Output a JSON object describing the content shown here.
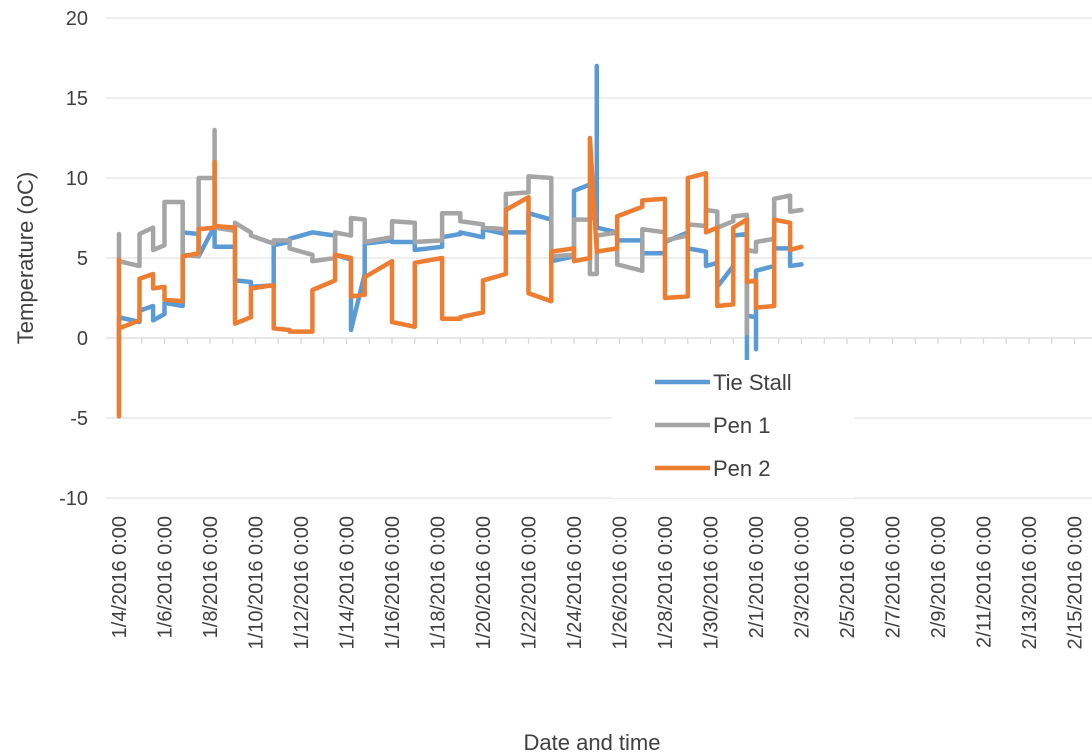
{
  "chart_data": {
    "type": "line",
    "title": "",
    "xlabel": "Date and time",
    "ylabel": "Temperature (oC)",
    "ylim": [
      -10,
      20
    ],
    "yticks": [
      "-10",
      "-5",
      "0",
      "5",
      "10",
      "15",
      "20"
    ],
    "x_tick_labels": [
      "1/4/2016 0:00",
      "1/6/2016 0:00",
      "1/8/2016 0:00",
      "1/10/2016 0:00",
      "1/12/2016 0:00",
      "1/14/2016 0:00",
      "1/16/2016 0:00",
      "1/18/2016 0:00",
      "1/20/2016 0:00",
      "1/22/2016 0:00",
      "1/24/2016 0:00",
      "1/26/2016 0:00",
      "1/28/2016 0:00",
      "1/30/2016 0:00",
      "2/1/2016 0:00",
      "2/3/2016 0:00",
      "2/5/2016 0:00",
      "2/7/2016 0:00",
      "2/9/2016 0:00",
      "2/11/2016 0:00",
      "2/13/2016 0:00",
      "2/15/2016 0:00"
    ],
    "grid": "horizontal",
    "legend_position": "center",
    "x_unit_note": "x values are day offsets from 1/4/2016 0:00",
    "series": [
      {
        "name": "Tie Stall",
        "color": "#5B9BD5",
        "points": [
          [
            0,
            -4.8
          ],
          [
            0,
            1.3
          ],
          [
            0.9,
            1.0
          ],
          [
            0.9,
            1.7
          ],
          [
            1.5,
            2.0
          ],
          [
            1.5,
            1.1
          ],
          [
            2.0,
            1.5
          ],
          [
            2.0,
            2.2
          ],
          [
            2.8,
            2.0
          ],
          [
            2.8,
            6.6
          ],
          [
            3.5,
            6.5
          ],
          [
            3.5,
            5.1
          ],
          [
            4.2,
            7.0
          ],
          [
            4.2,
            5.7
          ],
          [
            5.1,
            5.7
          ],
          [
            5.1,
            3.6
          ],
          [
            5.8,
            3.5
          ],
          [
            5.8,
            3.2
          ],
          [
            6.8,
            3.3
          ],
          [
            6.8,
            5.8
          ],
          [
            7.5,
            6.0
          ],
          [
            7.5,
            6.2
          ],
          [
            8.5,
            6.6
          ],
          [
            8.5,
            6.6
          ],
          [
            9.5,
            6.4
          ],
          [
            9.5,
            5.2
          ],
          [
            10.2,
            4.9
          ],
          [
            10.2,
            0.5
          ],
          [
            10.8,
            4.0
          ],
          [
            10.8,
            5.9
          ],
          [
            12.0,
            6.1
          ],
          [
            12.0,
            6.0
          ],
          [
            13.0,
            6.0
          ],
          [
            13.0,
            5.5
          ],
          [
            14.2,
            5.7
          ],
          [
            14.2,
            6.3
          ],
          [
            15.0,
            6.5
          ],
          [
            15.0,
            6.6
          ],
          [
            16.0,
            6.3
          ],
          [
            16.0,
            6.8
          ],
          [
            17.0,
            6.5
          ],
          [
            17.0,
            6.6
          ],
          [
            18.0,
            6.6
          ],
          [
            18.0,
            7.8
          ],
          [
            19.0,
            7.4
          ],
          [
            19.0,
            4.8
          ],
          [
            20.0,
            5.1
          ],
          [
            20.0,
            9.2
          ],
          [
            20.7,
            9.6
          ],
          [
            20.7,
            7.5
          ],
          [
            21.0,
            7.5
          ],
          [
            21.0,
            17.0
          ],
          [
            21.0,
            6.9
          ],
          [
            21.9,
            6.6
          ],
          [
            21.9,
            6.1
          ],
          [
            23.0,
            6.1
          ],
          [
            23.0,
            5.3
          ],
          [
            24.0,
            5.3
          ],
          [
            24.0,
            6.0
          ],
          [
            25.0,
            6.6
          ],
          [
            25.0,
            5.6
          ],
          [
            25.8,
            5.4
          ],
          [
            25.8,
            4.5
          ],
          [
            26.3,
            4.7
          ],
          [
            26.3,
            3.2
          ],
          [
            27.0,
            4.5
          ],
          [
            27.0,
            6.4
          ],
          [
            27.6,
            6.5
          ],
          [
            27.6,
            -3.7
          ],
          [
            27.6,
            1.4
          ],
          [
            28.0,
            1.3
          ],
          [
            28.0,
            -0.7
          ],
          [
            28.0,
            4.2
          ],
          [
            28.8,
            4.5
          ],
          [
            28.8,
            5.6
          ],
          [
            29.5,
            5.6
          ],
          [
            29.5,
            4.5
          ],
          [
            30.0,
            4.6
          ]
        ]
      },
      {
        "name": "Pen 1",
        "color": "#A5A5A5",
        "points": [
          [
            0,
            6.5
          ],
          [
            0,
            4.8
          ],
          [
            0.9,
            4.5
          ],
          [
            0.9,
            6.5
          ],
          [
            1.5,
            6.9
          ],
          [
            1.5,
            5.5
          ],
          [
            2.0,
            5.8
          ],
          [
            2.0,
            8.5
          ],
          [
            2.8,
            8.5
          ],
          [
            2.8,
            5.2
          ],
          [
            3.5,
            5.1
          ],
          [
            3.5,
            10.0
          ],
          [
            4.2,
            10.0
          ],
          [
            4.2,
            13.0
          ],
          [
            4.2,
            6.9
          ],
          [
            5.1,
            6.7
          ],
          [
            5.1,
            7.2
          ],
          [
            5.8,
            6.6
          ],
          [
            5.8,
            6.4
          ],
          [
            6.8,
            5.9
          ],
          [
            6.8,
            6.1
          ],
          [
            7.5,
            6.1
          ],
          [
            7.5,
            5.6
          ],
          [
            8.5,
            5.2
          ],
          [
            8.5,
            4.8
          ],
          [
            9.5,
            5.0
          ],
          [
            9.5,
            6.6
          ],
          [
            10.2,
            6.4
          ],
          [
            10.2,
            7.5
          ],
          [
            10.8,
            7.4
          ],
          [
            10.8,
            6.0
          ],
          [
            12.0,
            6.3
          ],
          [
            12.0,
            7.3
          ],
          [
            13.0,
            7.2
          ],
          [
            13.0,
            6.0
          ],
          [
            14.2,
            6.1
          ],
          [
            14.2,
            7.8
          ],
          [
            15.0,
            7.8
          ],
          [
            15.0,
            7.3
          ],
          [
            16.0,
            7.1
          ],
          [
            16.0,
            6.9
          ],
          [
            17.0,
            6.8
          ],
          [
            17.0,
            9.0
          ],
          [
            18.0,
            9.1
          ],
          [
            18.0,
            10.1
          ],
          [
            19.0,
            10.0
          ],
          [
            19.0,
            5.1
          ],
          [
            20.0,
            5.2
          ],
          [
            20.0,
            7.4
          ],
          [
            20.7,
            7.4
          ],
          [
            20.7,
            4.0
          ],
          [
            21.0,
            4.0
          ],
          [
            21.0,
            6.4
          ],
          [
            21.9,
            6.6
          ],
          [
            21.9,
            4.6
          ],
          [
            23.0,
            4.2
          ],
          [
            23.0,
            6.8
          ],
          [
            24.0,
            6.6
          ],
          [
            24.0,
            6.1
          ],
          [
            25.0,
            6.4
          ],
          [
            25.0,
            7.1
          ],
          [
            25.8,
            7.0
          ],
          [
            25.8,
            8.0
          ],
          [
            26.3,
            7.9
          ],
          [
            26.3,
            6.9
          ],
          [
            27.0,
            7.3
          ],
          [
            27.0,
            7.6
          ],
          [
            27.6,
            7.7
          ],
          [
            27.6,
            0.3
          ],
          [
            27.6,
            5.5
          ],
          [
            28.0,
            5.4
          ],
          [
            28.0,
            6.0
          ],
          [
            28.8,
            6.2
          ],
          [
            28.8,
            8.7
          ],
          [
            29.5,
            8.9
          ],
          [
            29.5,
            7.9
          ],
          [
            30.0,
            8.0
          ]
        ]
      },
      {
        "name": "Pen 2",
        "color": "#ED7D31",
        "points": [
          [
            0,
            -4.9
          ],
          [
            0,
            4.9
          ],
          [
            0,
            0.6
          ],
          [
            0.9,
            1.1
          ],
          [
            0.9,
            3.7
          ],
          [
            1.5,
            4.0
          ],
          [
            1.5,
            3.1
          ],
          [
            2.0,
            3.2
          ],
          [
            2.0,
            2.4
          ],
          [
            2.8,
            2.3
          ],
          [
            2.8,
            5.1
          ],
          [
            3.5,
            5.3
          ],
          [
            3.5,
            6.8
          ],
          [
            4.2,
            6.9
          ],
          [
            4.2,
            11.0
          ],
          [
            4.2,
            7.0
          ],
          [
            5.1,
            6.9
          ],
          [
            5.1,
            0.9
          ],
          [
            5.8,
            1.3
          ],
          [
            5.8,
            3.1
          ],
          [
            6.8,
            3.3
          ],
          [
            6.8,
            0.6
          ],
          [
            7.5,
            0.5
          ],
          [
            7.5,
            0.4
          ],
          [
            8.5,
            0.4
          ],
          [
            8.5,
            3.0
          ],
          [
            9.5,
            3.6
          ],
          [
            9.5,
            5.2
          ],
          [
            10.2,
            5.0
          ],
          [
            10.2,
            2.6
          ],
          [
            10.8,
            2.7
          ],
          [
            10.8,
            3.8
          ],
          [
            12.0,
            4.8
          ],
          [
            12.0,
            1.0
          ],
          [
            13.0,
            0.7
          ],
          [
            13.0,
            4.7
          ],
          [
            14.2,
            5.0
          ],
          [
            14.2,
            1.2
          ],
          [
            15.0,
            1.2
          ],
          [
            15.0,
            1.3
          ],
          [
            16.0,
            1.6
          ],
          [
            16.0,
            3.6
          ],
          [
            17.0,
            4.0
          ],
          [
            17.0,
            8.0
          ],
          [
            18.0,
            8.8
          ],
          [
            18.0,
            2.8
          ],
          [
            19.0,
            2.3
          ],
          [
            19.0,
            5.4
          ],
          [
            20.0,
            5.6
          ],
          [
            20.0,
            4.8
          ],
          [
            20.7,
            5.0
          ],
          [
            20.7,
            12.5
          ],
          [
            21.0,
            5.4
          ],
          [
            21.9,
            5.6
          ],
          [
            21.9,
            7.6
          ],
          [
            23.0,
            8.2
          ],
          [
            23.0,
            8.6
          ],
          [
            24.0,
            8.7
          ],
          [
            24.0,
            2.5
          ],
          [
            25.0,
            2.6
          ],
          [
            25.0,
            10.0
          ],
          [
            25.8,
            10.3
          ],
          [
            25.8,
            6.6
          ],
          [
            26.3,
            6.9
          ],
          [
            26.3,
            2.0
          ],
          [
            27.0,
            2.1
          ],
          [
            27.0,
            6.9
          ],
          [
            27.6,
            7.4
          ],
          [
            27.6,
            3.5
          ],
          [
            28.0,
            3.6
          ],
          [
            28.0,
            1.9
          ],
          [
            28.8,
            2.0
          ],
          [
            28.8,
            7.4
          ],
          [
            29.5,
            7.2
          ],
          [
            29.5,
            5.5
          ],
          [
            30.0,
            5.7
          ]
        ]
      }
    ]
  }
}
